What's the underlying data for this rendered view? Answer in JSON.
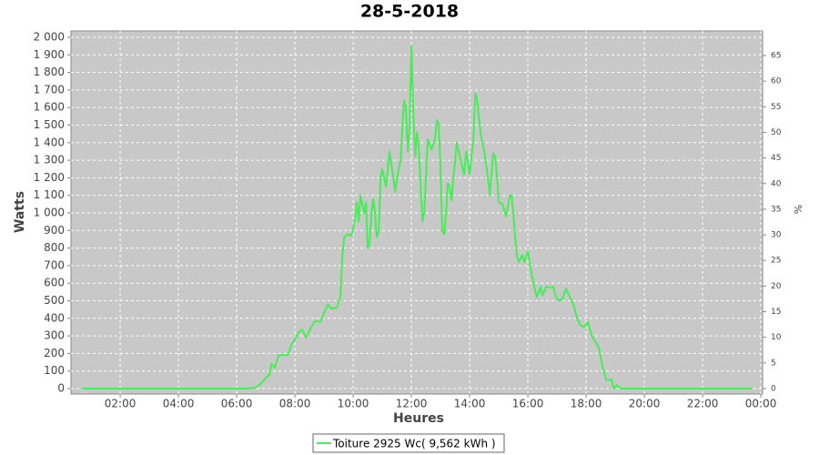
{
  "chart_data": {
    "type": "line",
    "title": "28-5-2018",
    "xlabel": "Heures",
    "ylabel": "Watts",
    "y2label": "%",
    "x": [
      0.69,
      6.31,
      6.63,
      6.78,
      7.0,
      7.13,
      7.19,
      7.31,
      7.44,
      7.75,
      7.88,
      8.0,
      8.13,
      8.25,
      8.38,
      8.56,
      8.69,
      8.88,
      9.0,
      9.13,
      9.25,
      9.44,
      9.56,
      9.63,
      9.69,
      9.81,
      9.94,
      10.06,
      10.13,
      10.19,
      10.25,
      10.38,
      10.44,
      10.5,
      10.56,
      10.63,
      10.69,
      10.75,
      10.81,
      10.88,
      10.94,
      11.0,
      11.13,
      11.25,
      11.38,
      11.44,
      11.56,
      11.63,
      11.69,
      11.75,
      11.81,
      11.88,
      11.94,
      12.0,
      12.06,
      12.13,
      12.19,
      12.25,
      12.38,
      12.44,
      12.5,
      12.56,
      12.69,
      12.81,
      12.88,
      12.94,
      13.0,
      13.06,
      13.13,
      13.19,
      13.25,
      13.31,
      13.38,
      13.44,
      13.56,
      13.69,
      13.81,
      13.88,
      14.0,
      14.13,
      14.19,
      14.25,
      14.38,
      14.5,
      14.63,
      14.69,
      14.81,
      14.88,
      14.94,
      15.0,
      15.13,
      15.25,
      15.38,
      15.44,
      15.5,
      15.56,
      15.63,
      15.69,
      15.81,
      15.88,
      16.0,
      16.13,
      16.19,
      16.31,
      16.44,
      16.5,
      16.63,
      16.81,
      16.88,
      16.94,
      17.06,
      17.19,
      17.31,
      17.44,
      17.56,
      17.69,
      17.81,
      17.94,
      18.06,
      18.19,
      18.31,
      18.44,
      18.56,
      18.69,
      18.88,
      18.94,
      19.06,
      19.19,
      19.75,
      23.69
    ],
    "series": [
      {
        "name": "Toiture 2925 Wc( 9,562 kWh )",
        "color": "#44ee55",
        "values": [
          0,
          0,
          5,
          20,
          60,
          80,
          140,
          120,
          190,
          190,
          250,
          280,
          320,
          335,
          290,
          350,
          385,
          380,
          430,
          480,
          455,
          460,
          520,
          750,
          860,
          880,
          870,
          960,
          1060,
          950,
          1100,
          1000,
          1060,
          800,
          820,
          1000,
          1080,
          1000,
          860,
          900,
          1200,
          1250,
          1150,
          1350,
          1200,
          1120,
          1250,
          1300,
          1500,
          1640,
          1600,
          1350,
          1500,
          1950,
          1600,
          1320,
          1460,
          1380,
          950,
          1000,
          1200,
          1420,
          1360,
          1420,
          1530,
          1500,
          1250,
          900,
          880,
          1000,
          1170,
          1150,
          1070,
          1200,
          1400,
          1300,
          1220,
          1350,
          1220,
          1420,
          1680,
          1650,
          1450,
          1350,
          1200,
          1100,
          1340,
          1320,
          1200,
          1060,
          1050,
          980,
          1100,
          1100,
          1000,
          870,
          750,
          720,
          760,
          720,
          780,
          650,
          600,
          520,
          580,
          530,
          580,
          575,
          580,
          530,
          500,
          510,
          570,
          520,
          480,
          400,
          360,
          350,
          380,
          300,
          270,
          230,
          130,
          50,
          50,
          0,
          20,
          0,
          0,
          0
        ]
      }
    ],
    "xlim": [
      0.31,
      24.06
    ],
    "xticks": [
      {
        "value": 2,
        "label": "02:00"
      },
      {
        "value": 4,
        "label": "04:00"
      },
      {
        "value": 6,
        "label": "06:00"
      },
      {
        "value": 8,
        "label": "08:00"
      },
      {
        "value": 10,
        "label": "10:00"
      },
      {
        "value": 12,
        "label": "12:00"
      },
      {
        "value": 14,
        "label": "14:00"
      },
      {
        "value": 16,
        "label": "16:00"
      },
      {
        "value": 18,
        "label": "18:00"
      },
      {
        "value": 20,
        "label": "20:00"
      },
      {
        "value": 22,
        "label": "22:00"
      },
      {
        "value": 24,
        "label": "00:00"
      }
    ],
    "ylim": [
      -31,
      2036
    ],
    "yticks": [
      0,
      100,
      200,
      300,
      400,
      500,
      600,
      700,
      800,
      900,
      {
        "value": 1000,
        "label": "1 000"
      },
      {
        "value": 1100,
        "label": "1 100"
      },
      {
        "value": 1200,
        "label": "1 200"
      },
      {
        "value": 1300,
        "label": "1 300"
      },
      {
        "value": 1400,
        "label": "1 400"
      },
      {
        "value": 1500,
        "label": "1 500"
      },
      {
        "value": 1600,
        "label": "1 600"
      },
      {
        "value": 1700,
        "label": "1 700"
      },
      {
        "value": 1800,
        "label": "1 800"
      },
      {
        "value": 1900,
        "label": "1 900"
      },
      {
        "value": 2000,
        "label": "2 000"
      }
    ],
    "y2lim": [
      -1.07,
      69.8
    ],
    "y2ticks": [
      0,
      5,
      10,
      15,
      20,
      25,
      30,
      35,
      40,
      45,
      50,
      55,
      60,
      65
    ],
    "grid": true
  }
}
